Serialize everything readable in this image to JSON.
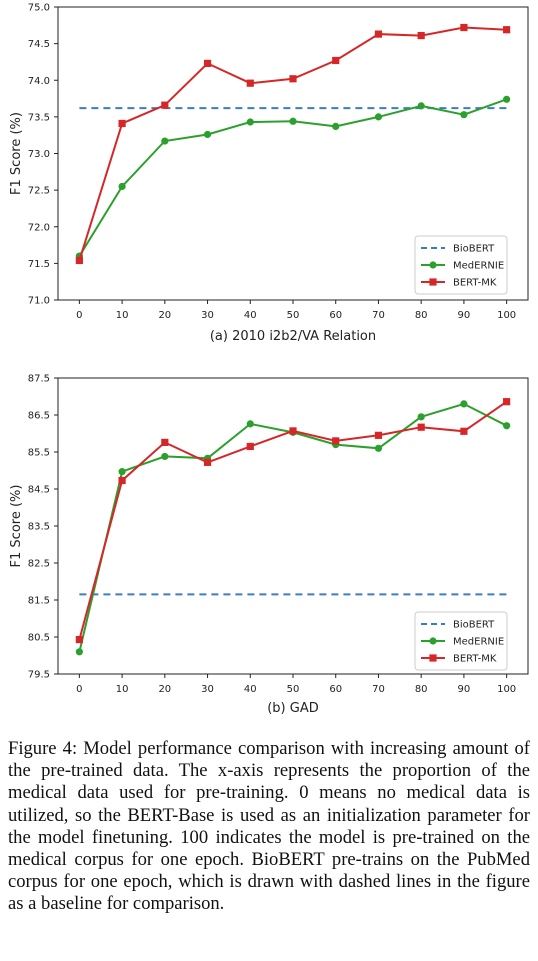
{
  "chart_data": [
    {
      "type": "line",
      "title": "(a) 2010 i2b2/VA Relation",
      "xlabel": "(a) 2010 i2b2/VA Relation",
      "ylabel": "F1 Score (%)",
      "x": [
        0,
        10,
        20,
        30,
        40,
        50,
        60,
        70,
        80,
        90,
        100
      ],
      "xlim": [
        -5,
        105
      ],
      "ylim": [
        71.0,
        75.0
      ],
      "yticks": [
        71.0,
        71.5,
        72.0,
        72.5,
        73.0,
        73.5,
        74.0,
        74.5,
        75.0
      ],
      "ytick_labels": [
        "71.0",
        "71.5",
        "72.0",
        "72.5",
        "73.0",
        "73.5",
        "74.0",
        "74.5",
        "75.0"
      ],
      "grid": false,
      "legend_position": "lower-right",
      "series": [
        {
          "name": "BioBERT",
          "style": "dashed",
          "color": "#3b7dbf",
          "values": [
            73.62,
            73.62,
            73.62,
            73.62,
            73.62,
            73.62,
            73.62,
            73.62,
            73.62,
            73.62,
            73.62
          ]
        },
        {
          "name": "MedERNIE",
          "style": "circle",
          "color": "#2ca02c",
          "values": [
            71.6,
            72.55,
            73.17,
            73.26,
            73.43,
            73.44,
            73.37,
            73.5,
            73.65,
            73.53,
            73.74
          ]
        },
        {
          "name": "BERT-MK",
          "style": "square",
          "color": "#d62728",
          "values": [
            71.54,
            73.41,
            73.66,
            74.23,
            73.96,
            74.02,
            74.27,
            74.63,
            74.61,
            74.72,
            74.69
          ]
        }
      ]
    },
    {
      "type": "line",
      "title": "(b) GAD",
      "xlabel": "(b) GAD",
      "ylabel": "F1 Score (%)",
      "x": [
        0,
        10,
        20,
        30,
        40,
        50,
        60,
        70,
        80,
        90,
        100
      ],
      "xlim": [
        -5,
        105
      ],
      "ylim": [
        79.5,
        87.5
      ],
      "yticks": [
        79.5,
        80.5,
        81.5,
        82.5,
        83.5,
        84.5,
        85.5,
        86.5,
        87.5
      ],
      "ytick_labels": [
        "79.5",
        "80.5",
        "81.5",
        "82.5",
        "83.5",
        "84.5",
        "85.5",
        "86.5",
        "87.5"
      ],
      "grid": false,
      "legend_position": "lower-right",
      "series": [
        {
          "name": "BioBERT",
          "style": "dashed",
          "color": "#3b7dbf",
          "values": [
            81.65,
            81.65,
            81.65,
            81.65,
            81.65,
            81.65,
            81.65,
            81.65,
            81.65,
            81.65,
            81.65
          ]
        },
        {
          "name": "MedERNIE",
          "style": "circle",
          "color": "#2ca02c",
          "values": [
            80.1,
            84.97,
            85.38,
            85.33,
            86.26,
            86.03,
            85.7,
            85.6,
            86.45,
            86.8,
            86.21
          ]
        },
        {
          "name": "BERT-MK",
          "style": "square",
          "color": "#d62728",
          "values": [
            80.43,
            84.73,
            85.76,
            85.22,
            85.65,
            86.07,
            85.8,
            85.95,
            86.17,
            86.06,
            86.86
          ]
        }
      ]
    }
  ],
  "caption": "Figure 4: Model performance comparison with increasing amount of the pre-trained data. The x-axis represents the proportion of the medical data used for pre-training. 0 means no medical data is utilized, so the BERT-Base is used as an initialization parameter for the model finetuning. 100 indicates the model is pre-trained on the medical corpus for one epoch. BioBERT pre-trains on the PubMed corpus for one epoch, which is drawn with dashed lines in the figure as a baseline for comparison."
}
